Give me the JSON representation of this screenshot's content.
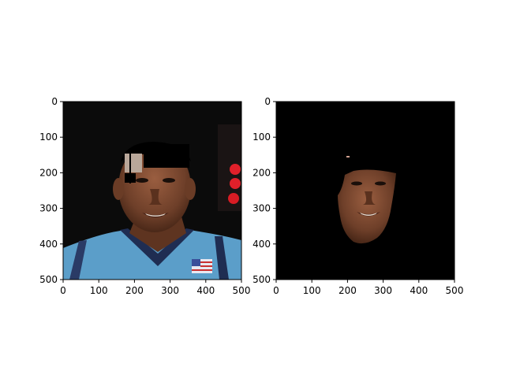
{
  "panels": [
    {
      "name": "original-image",
      "x_ticks": [
        "0",
        "100",
        "200",
        "300",
        "400",
        "500"
      ],
      "y_ticks": [
        "0",
        "100",
        "200",
        "300",
        "400",
        "500"
      ],
      "xlim": [
        0,
        500
      ],
      "ylim": [
        0,
        500
      ]
    },
    {
      "name": "masked-face-image",
      "x_ticks": [
        "0",
        "100",
        "200",
        "300",
        "400",
        "500"
      ],
      "y_ticks": [
        "0",
        "100",
        "200",
        "300",
        "400",
        "500"
      ],
      "xlim": [
        0,
        500
      ],
      "ylim": [
        0,
        500
      ]
    }
  ],
  "colors": {
    "background_dark": "#0a0a0a",
    "jersey_blue": "#5b9ec9",
    "jersey_trim": "#1f2d52",
    "skin": "#7a4a32",
    "hair_black": "#000000",
    "red_lights": "#e0202a"
  }
}
